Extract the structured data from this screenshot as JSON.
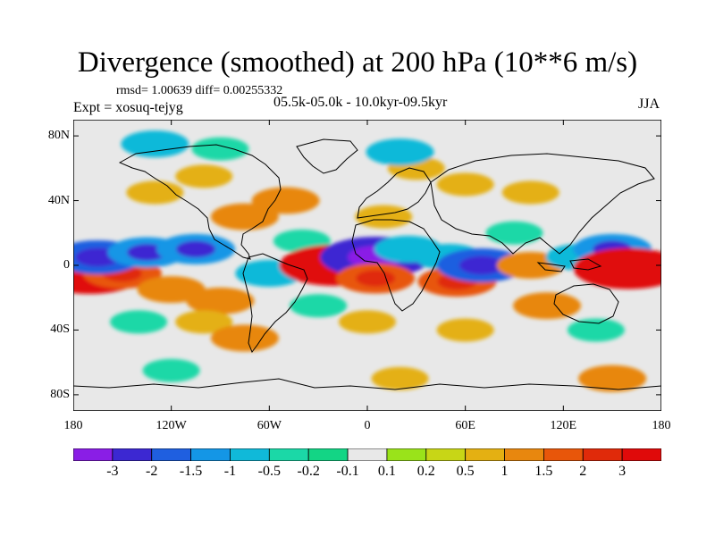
{
  "title": "Divergence (smoothed) at 200 hPa (10**6 m/s)",
  "stats": "rmsd= 1.00639 diff= 0.00255332",
  "experiment": "Expt = xosuq-tejyg",
  "period": "05.5k-05.0k - 10.0kyr-09.5kyr",
  "season": "JJA",
  "y_ticks": [
    "80N",
    "40N",
    "0",
    "40S",
    "80S"
  ],
  "x_ticks": [
    "180",
    "120W",
    "60W",
    "0",
    "60E",
    "120E",
    "180"
  ],
  "colorbar": {
    "labels": [
      "-3",
      "-2",
      "-1.5",
      "-1",
      "-0.5",
      "-0.2",
      "-0.1",
      "0.1",
      "0.2",
      "0.5",
      "1",
      "1.5",
      "2",
      "3"
    ],
    "colors": [
      "#8a1ee6",
      "#3c28d2",
      "#1f5fe0",
      "#1496e6",
      "#10b9d9",
      "#1bd8a7",
      "#13d585",
      "#e8e8e8",
      "#9ae31a",
      "#c8d616",
      "#e4b012",
      "#e8870e",
      "#e8560a",
      "#e02a0a",
      "#e00a0a"
    ]
  },
  "map_data": {
    "lon_range": [
      -180,
      180
    ],
    "lat_range": [
      -90,
      90
    ],
    "features": [
      {
        "lon": -170,
        "lat": -5,
        "value": 3
      },
      {
        "lon": -150,
        "lat": -5,
        "value": 1.5
      },
      {
        "lon": -165,
        "lat": 5,
        "value": -2
      },
      {
        "lon": -135,
        "lat": 8,
        "value": -1.5
      },
      {
        "lon": -105,
        "lat": 10,
        "value": -1.5
      },
      {
        "lon": -120,
        "lat": -15,
        "value": 1
      },
      {
        "lon": -90,
        "lat": -22,
        "value": 1
      },
      {
        "lon": -140,
        "lat": -35,
        "value": -0.5
      },
      {
        "lon": -100,
        "lat": -35,
        "value": 0.5
      },
      {
        "lon": -75,
        "lat": -45,
        "value": 1
      },
      {
        "lon": -60,
        "lat": -5,
        "value": -1
      },
      {
        "lon": -40,
        "lat": 15,
        "value": -0.5
      },
      {
        "lon": -75,
        "lat": 30,
        "value": 1
      },
      {
        "lon": -50,
        "lat": 40,
        "value": 1
      },
      {
        "lon": -130,
        "lat": 45,
        "value": 0.5
      },
      {
        "lon": -100,
        "lat": 55,
        "value": 0.5
      },
      {
        "lon": -90,
        "lat": 72,
        "value": -0.5
      },
      {
        "lon": -130,
        "lat": 75,
        "value": -1
      },
      {
        "lon": -20,
        "lat": 0,
        "value": 3
      },
      {
        "lon": 5,
        "lat": 5,
        "value": -3
      },
      {
        "lon": 5,
        "lat": -8,
        "value": 1.5
      },
      {
        "lon": 25,
        "lat": 10,
        "value": -1
      },
      {
        "lon": 10,
        "lat": 30,
        "value": 0.5
      },
      {
        "lon": 30,
        "lat": 60,
        "value": 0.5
      },
      {
        "lon": 20,
        "lat": 70,
        "value": -1
      },
      {
        "lon": 60,
        "lat": 50,
        "value": 0.5
      },
      {
        "lon": 100,
        "lat": 45,
        "value": 0.5
      },
      {
        "lon": 90,
        "lat": 20,
        "value": -0.5
      },
      {
        "lon": 50,
        "lat": 5,
        "value": -1
      },
      {
        "lon": 55,
        "lat": -10,
        "value": 1.5
      },
      {
        "lon": 70,
        "lat": 0,
        "value": -2
      },
      {
        "lon": 100,
        "lat": 0,
        "value": 1
      },
      {
        "lon": 130,
        "lat": 5,
        "value": -1
      },
      {
        "lon": 150,
        "lat": 10,
        "value": -1.5
      },
      {
        "lon": 160,
        "lat": -2,
        "value": 3
      },
      {
        "lon": 110,
        "lat": -25,
        "value": 1
      },
      {
        "lon": 60,
        "lat": -40,
        "value": 0.5
      },
      {
        "lon": 140,
        "lat": -40,
        "value": -0.5
      },
      {
        "lon": -30,
        "lat": -25,
        "value": -0.5
      },
      {
        "lon": 0,
        "lat": -35,
        "value": 0.5
      },
      {
        "lon": -120,
        "lat": -65,
        "value": -0.5
      },
      {
        "lon": 20,
        "lat": -70,
        "value": 0.5
      },
      {
        "lon": 150,
        "lat": -70,
        "value": 1
      }
    ]
  }
}
